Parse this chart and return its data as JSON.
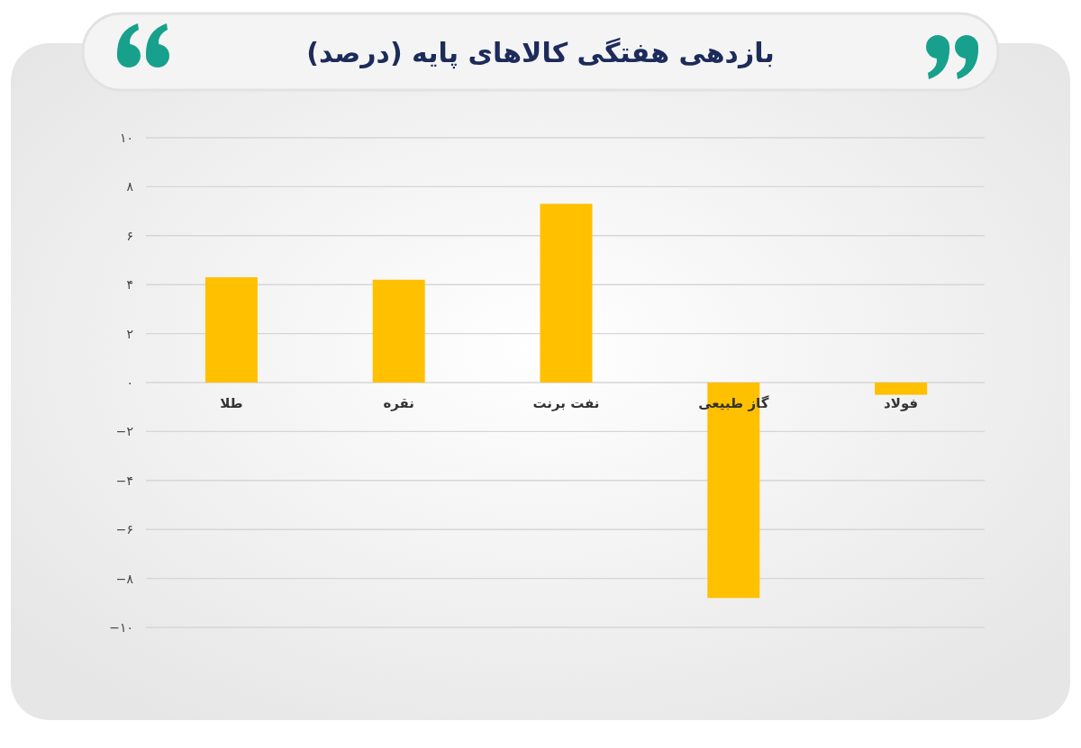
{
  "chart_data": {
    "type": "bar",
    "title": "بازدهی هفتگی کالاهای پایه (درصد)",
    "categories": [
      "طلا",
      "نقره",
      "نفت برنت",
      "گاز طبیعی",
      "فولاد"
    ],
    "values": [
      4.3,
      4.2,
      7.3,
      -8.8,
      -0.5
    ],
    "color": "#ffc000",
    "ylim": [
      -10,
      10
    ],
    "yticks": [
      {
        "value": 10,
        "label": "۱۰"
      },
      {
        "value": 8,
        "label": "۸"
      },
      {
        "value": 6,
        "label": "۶"
      },
      {
        "value": 4,
        "label": "۴"
      },
      {
        "value": 2,
        "label": "۲"
      },
      {
        "value": 0,
        "label": "۰"
      },
      {
        "value": -2,
        "label": "−۲"
      },
      {
        "value": -4,
        "label": "−۴"
      },
      {
        "value": -6,
        "label": "−۶"
      },
      {
        "value": -8,
        "label": "−۸"
      },
      {
        "value": -10,
        "label": "−۱۰"
      }
    ],
    "grid": "y"
  }
}
